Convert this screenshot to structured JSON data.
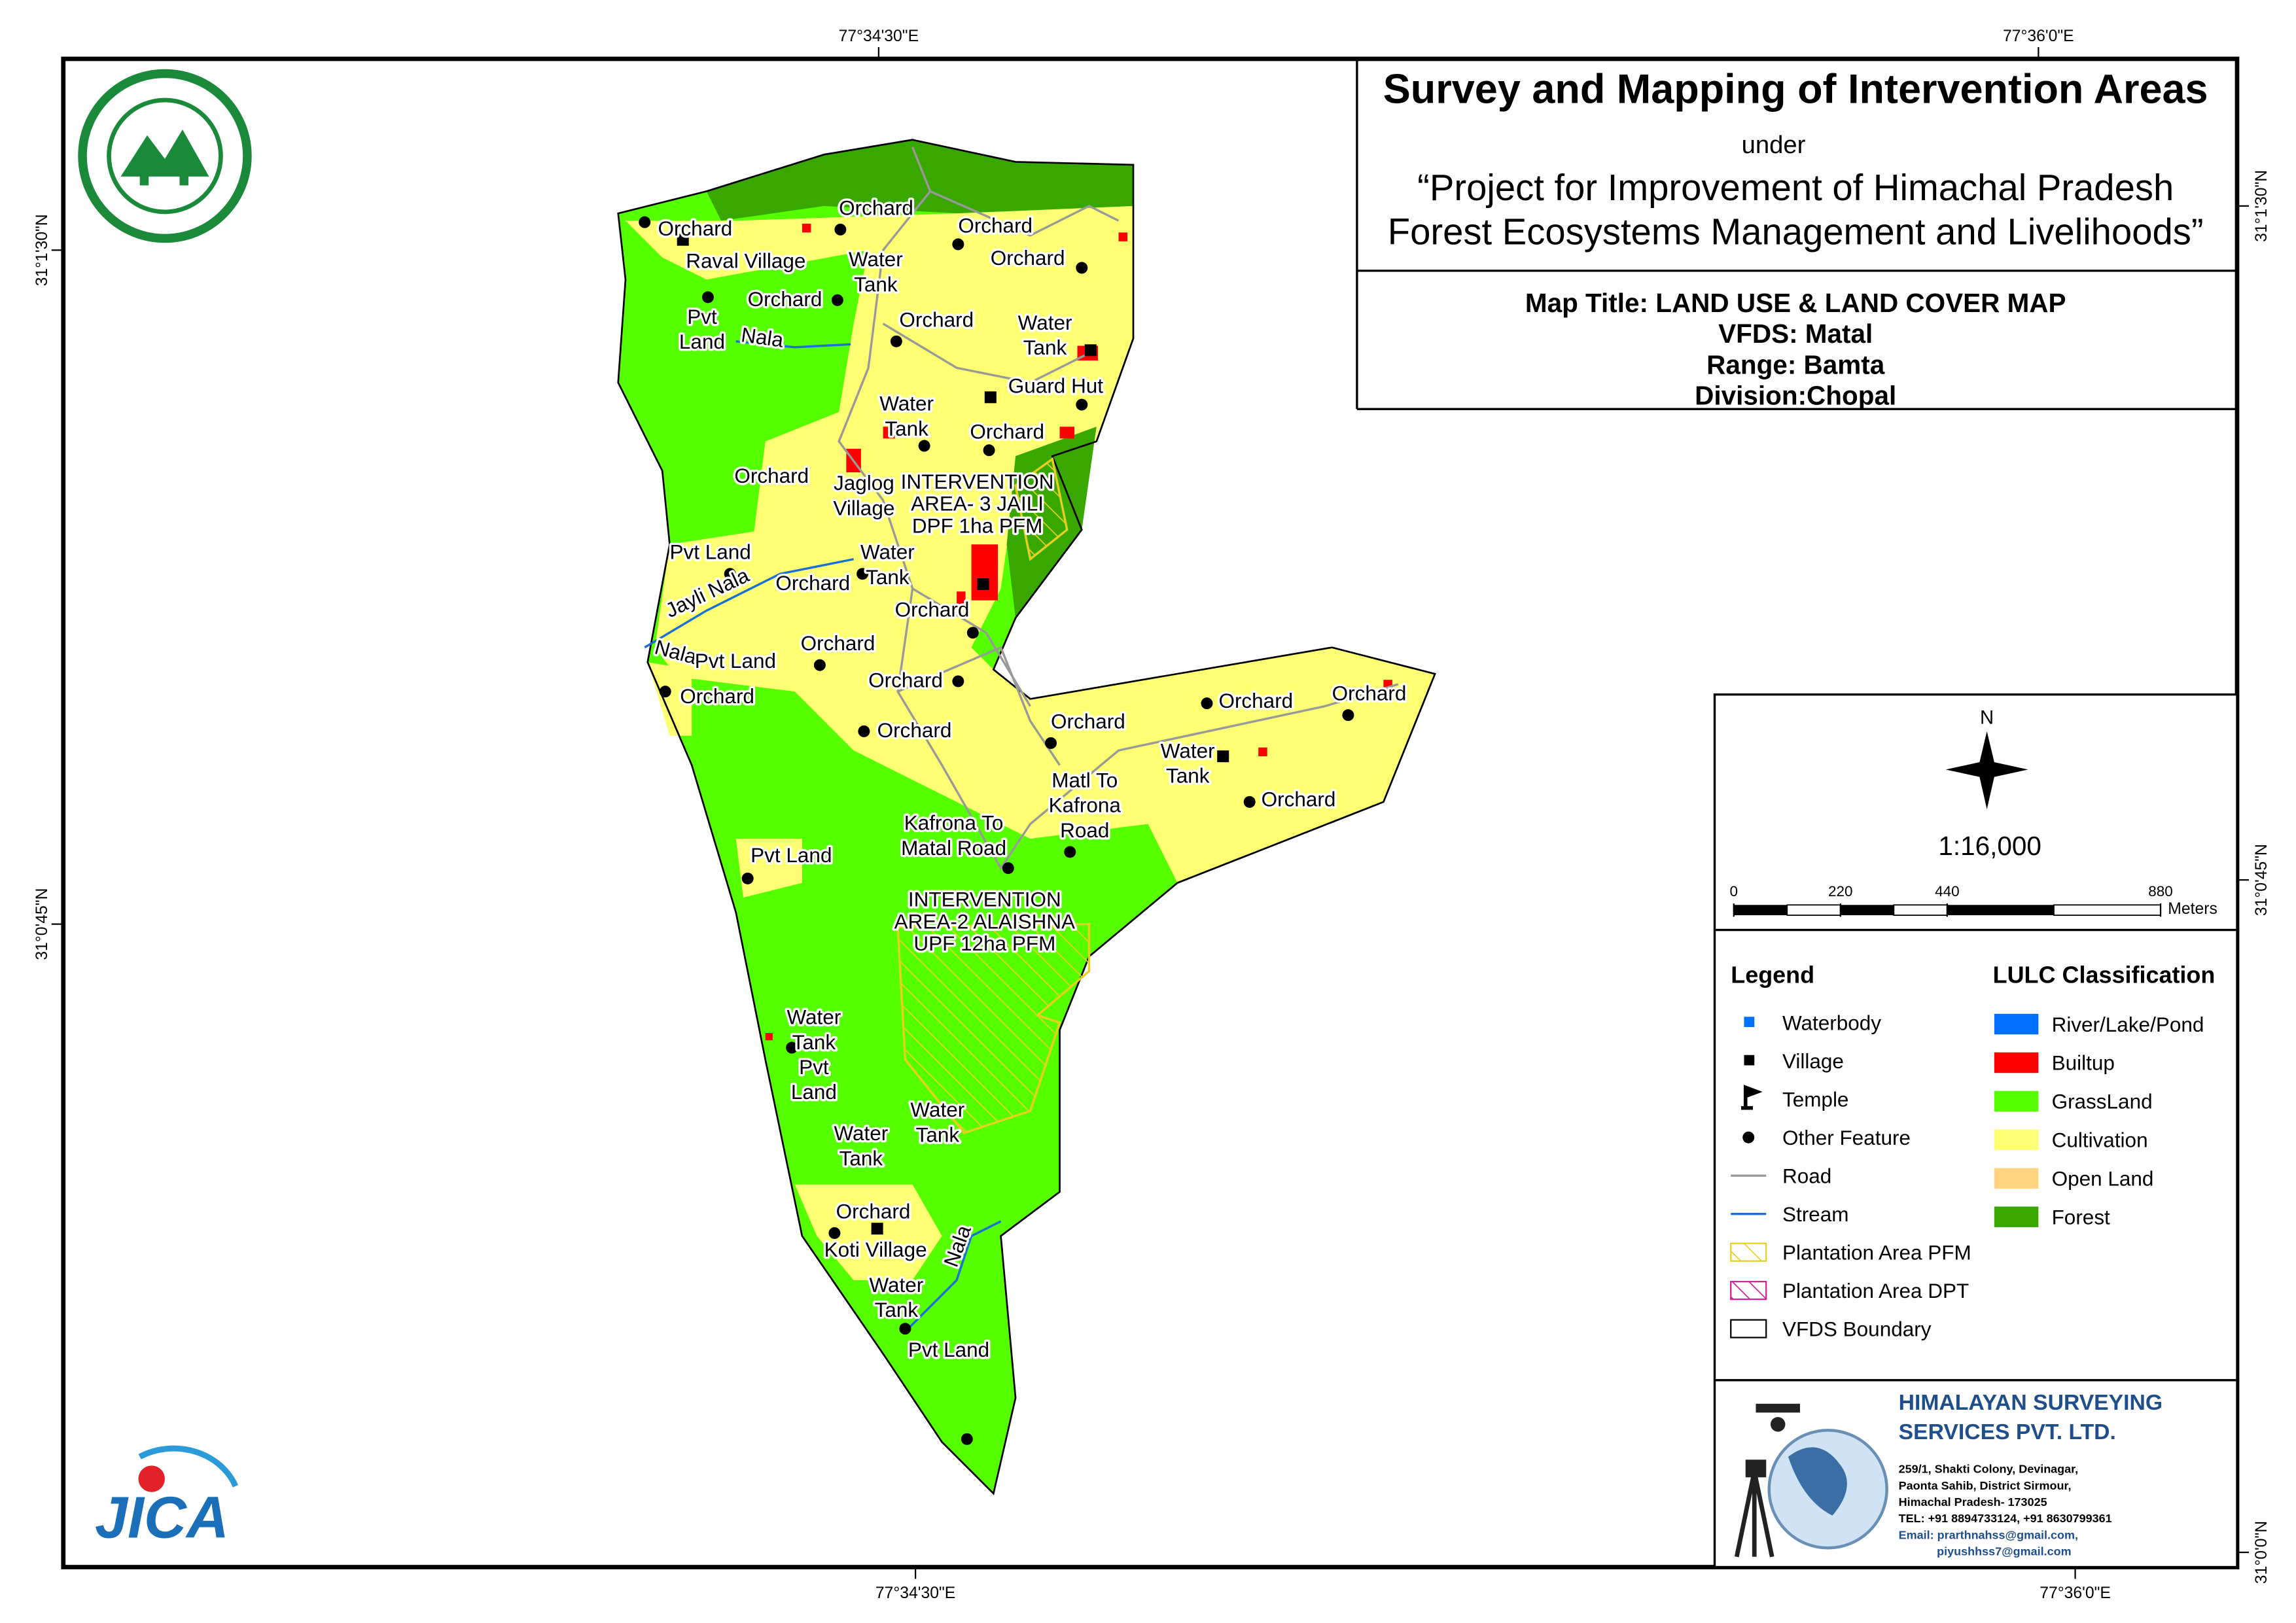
{
  "header": {
    "title": "Survey and Mapping of Intervention Areas",
    "under": "under",
    "project": [
      "“Project for Improvement of Himachal Pradesh",
      "Forest Ecosystems Management and Livelihoods”"
    ]
  },
  "map_info": [
    "Map Title: LAND USE & LAND COVER MAP",
    "VFDS: Matal",
    "Range: Bamta",
    "Division:Chopal"
  ],
  "coordinates": {
    "top": [
      "77°34'30\"E",
      "77°36'0\"E"
    ],
    "bottom": [
      "77°34'30\"E",
      "77°36'0\"E"
    ],
    "left": [
      "31°1'30\"N",
      "31°0'45\"N"
    ],
    "right": [
      "31°1'30\"N",
      "31°0'45\"N",
      "31°0'0\"N"
    ]
  },
  "north": "N",
  "scale": {
    "ratio": "1:16,000",
    "ticks": [
      0,
      220,
      440,
      880
    ],
    "unit": "Meters"
  },
  "legend": {
    "title": "Legend",
    "items": [
      "Waterbody",
      "Village",
      "Temple",
      "Other Feature",
      "Road",
      "Stream",
      "Plantation Area PFM",
      "Plantation Area DPT",
      "VFDS Boundary"
    ]
  },
  "lulc": {
    "title": "LULC Classification",
    "items": [
      {
        "name": "River/Lake/Pond",
        "color": "#0070ff"
      },
      {
        "name": "Builtup",
        "color": "#ff0000"
      },
      {
        "name": "GrassLand",
        "color": "#55ff00"
      },
      {
        "name": "Cultivation",
        "color": "#ffff73"
      },
      {
        "name": "Open Land",
        "color": "#ffd37f"
      },
      {
        "name": "Forest",
        "color": "#38a800"
      }
    ]
  },
  "company": {
    "name": [
      "HIMALAYAN SURVEYING",
      "SERVICES PVT. LTD."
    ],
    "address": [
      "259/1, Shakti Colony, Devinagar,",
      "Paonta Sahib, District Sirmour,",
      "Himachal Pradesh- 173025",
      "TEL: +91 8894733124, +91 8630799361",
      "Email: prarthnahss@gmail.com,",
      "piyushhss7@gmail.com"
    ]
  },
  "logo": "JICA",
  "map_labels": [
    [
      "Orchard"
    ],
    [
      "Orchard"
    ],
    [
      "Orchard"
    ],
    [
      "Orchard"
    ],
    [
      "Raval Village"
    ],
    [
      "Water",
      "Tank"
    ],
    [
      "Orchard"
    ],
    [
      "Pvt",
      "Land"
    ],
    [
      "Nala"
    ],
    [
      "Orchard"
    ],
    [
      "Water",
      "Tank"
    ],
    [
      "Guard Hut"
    ],
    [
      "Water",
      "Tank"
    ],
    [
      "Orchard"
    ],
    [
      "Orchard"
    ],
    [
      "Jaglog",
      "Village"
    ],
    [
      "INTERVENTION",
      "AREA- 3 JAILI",
      "DPF 1ha PFM"
    ],
    [
      "Pvt Land"
    ],
    [
      "Water",
      "Tank"
    ],
    [
      "Jayli Nala"
    ],
    [
      "Orchard"
    ],
    [
      "Orchard"
    ],
    [
      "Orchard"
    ],
    [
      "Nala"
    ],
    [
      "Pvt Land"
    ],
    [
      "Orchard"
    ],
    [
      "Orchard"
    ],
    [
      "Orchard"
    ],
    [
      "Orchard"
    ],
    [
      "Orchard"
    ],
    [
      "Orchard"
    ],
    [
      "Water",
      "Tank"
    ],
    [
      "Matl To",
      "Kafrona",
      "Road"
    ],
    [
      "Orchard"
    ],
    [
      "Kafrona To",
      "Matal Road"
    ],
    [
      "Pvt Land"
    ],
    [
      "INTERVENTION",
      "AREA-2 ALAISHNA",
      "UPF 12ha PFM"
    ],
    [
      "Water",
      "Tank",
      "Pvt",
      "Land"
    ],
    [
      "Water",
      "Tank"
    ],
    [
      "Water",
      "Tank"
    ],
    [
      "Orchard"
    ],
    [
      "Koti Village"
    ],
    [
      "Nala"
    ],
    [
      "Water",
      "Tank"
    ],
    [
      "Pvt Land"
    ]
  ]
}
